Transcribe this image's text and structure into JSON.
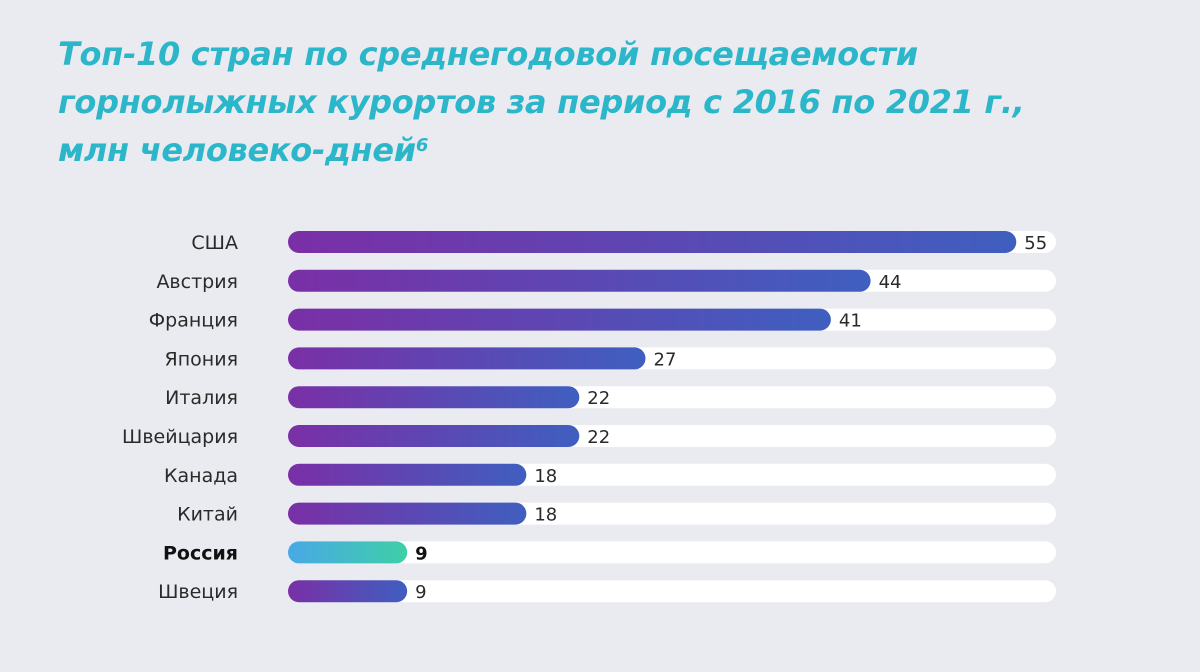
{
  "title": {
    "line1": "Топ-10 стран по среднегодовой посещаемости",
    "line2": "горнолыжных курортов за период с 2016 по 2021 г.,",
    "line3": "млн человеко-дней",
    "footnote": "6"
  },
  "colors": {
    "title": "#2cb6c9",
    "track": "#ffffff",
    "bar_start": "#7a2fa6",
    "bar_end": "#3f5fc0",
    "highlight_start": "#49a8e6",
    "highlight_end": "#3ecfa7",
    "background": "#e9ebf0"
  },
  "chart_data": {
    "type": "bar",
    "orientation": "horizontal",
    "title": "Топ-10 стран по среднегодовой посещаемости горнолыжных курортов за период с 2016 по 2021 г., млн человеко-дней",
    "categories": [
      "США",
      "Австрия",
      "Франция",
      "Япония",
      "Италия",
      "Швейцария",
      "Канада",
      "Китай",
      "Россия",
      "Швеция"
    ],
    "values": [
      55,
      44,
      41,
      27,
      22,
      22,
      18,
      18,
      9,
      9
    ],
    "highlight": "Россия",
    "xlabel": "",
    "ylabel": "",
    "xlim": [
      0,
      58
    ],
    "grid": false,
    "legend": "none"
  }
}
